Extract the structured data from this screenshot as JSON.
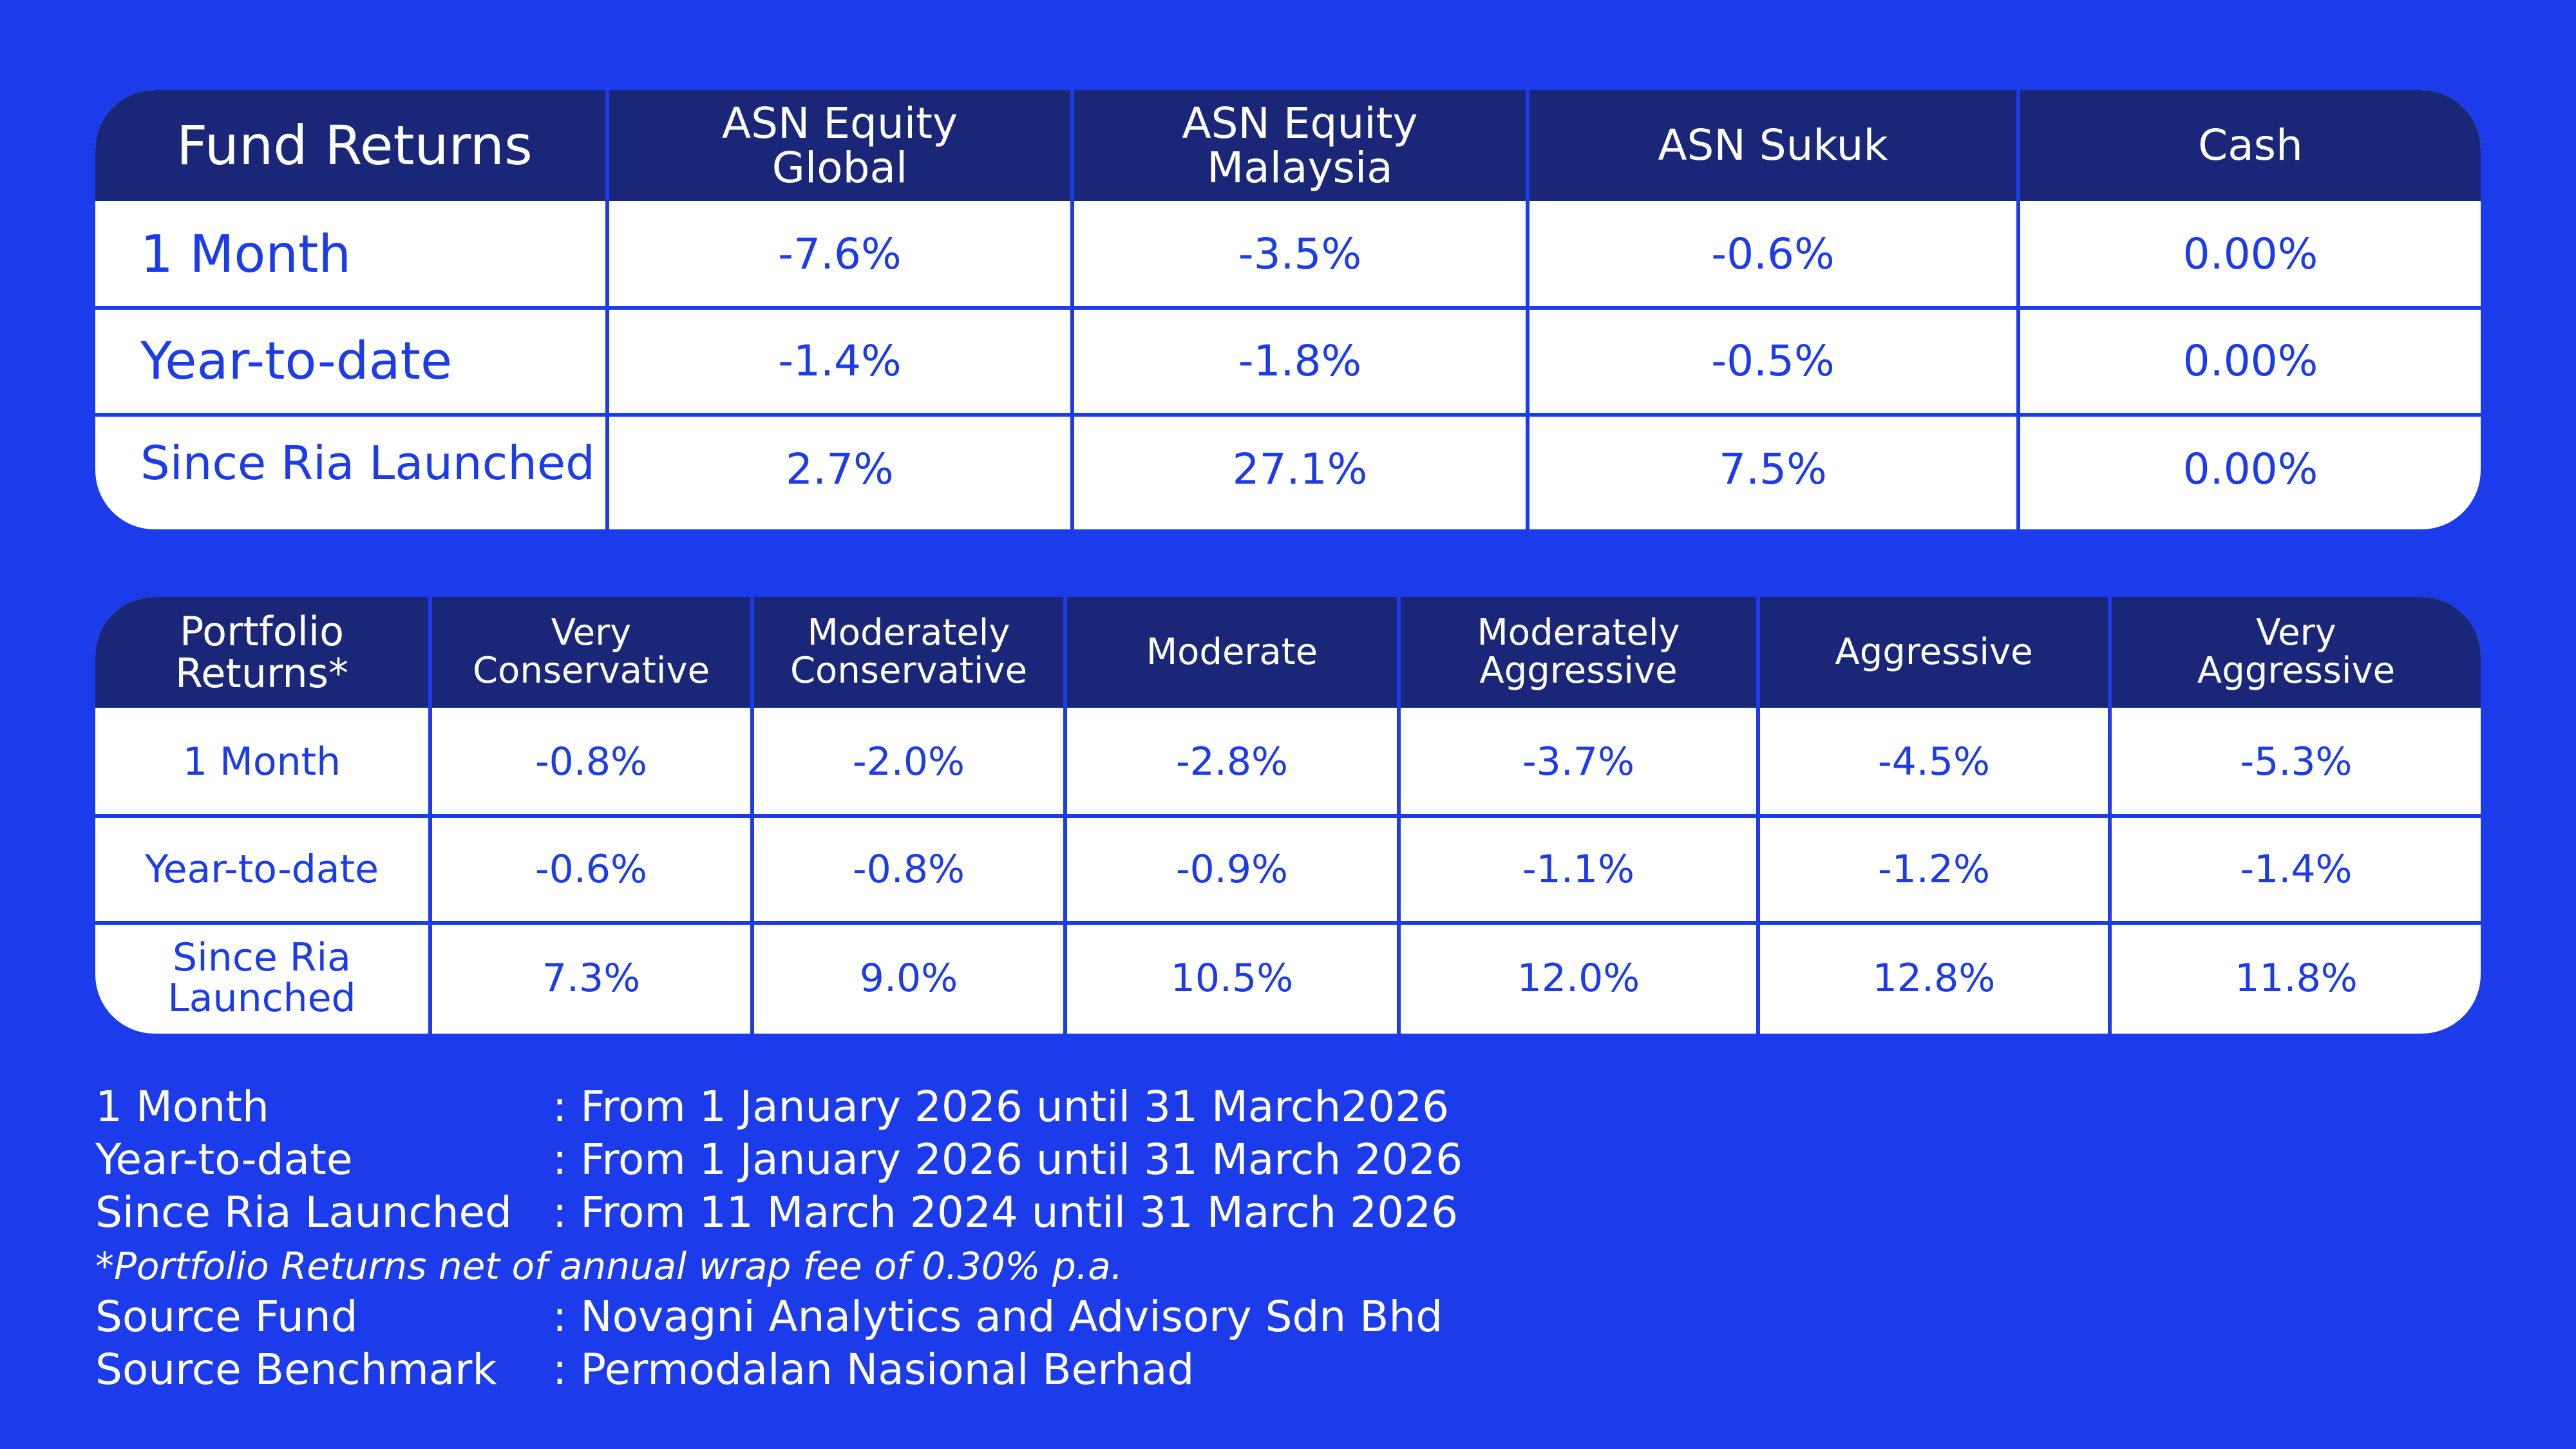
{
  "fund_table": {
    "headers": [
      "Fund Returns",
      "ASN Equity\nGlobal",
      "ASN Equity\nMalaysia",
      "ASN Sukuk",
      "Cash"
    ],
    "rows": [
      {
        "label": "1 Month",
        "values": [
          "-7.6%",
          "-3.5%",
          "-0.6%",
          "0.00%"
        ]
      },
      {
        "label": "Year-to-date",
        "values": [
          "-1.4%",
          "-1.8%",
          "-0.5%",
          "0.00%"
        ]
      },
      {
        "label": "Since Ria Launched",
        "values": [
          "2.7%",
          "27.1%",
          "7.5%",
          "0.00%"
        ]
      }
    ]
  },
  "portfolio_table": {
    "headers": [
      "Portfolio\nReturns*",
      "Very\nConservative",
      "Moderately\nConservative",
      "Moderate",
      "Moderately\nAggressive",
      "Aggressive",
      "Very\nAggressive"
    ],
    "rows": [
      {
        "label": "1 Month",
        "values": [
          "-0.8%",
          "-2.0%",
          "-2.8%",
          "-3.7%",
          "-4.5%",
          "-5.3%"
        ]
      },
      {
        "label": "Year-to-date",
        "values": [
          "-0.6%",
          "-0.8%",
          "-0.9%",
          "-1.1%",
          "-1.2%",
          "-1.4%"
        ]
      },
      {
        "label": "Since Ria\nLaunched",
        "values": [
          "7.3%",
          "9.0%",
          "10.5%",
          "12.0%",
          "12.8%",
          "11.8%"
        ]
      }
    ]
  },
  "notes": {
    "month_label": "1 Month",
    "month_value": ": From 1 January 2026 until 31 March2026",
    "ytd_label": "Year-to-date",
    "ytd_value": ": From 1 January 2026 until 31 March 2026",
    "since_label": "Since Ria Launched",
    "since_value": ": From 11 March 2024 until  31 March 2026",
    "fee_note": "*Portfolio Returns net of annual wrap fee of 0.30% p.a.",
    "source_fund_label": "Source Fund",
    "source_fund_value": ": Novagni Analytics and Advisory Sdn Bhd",
    "source_benchmark_label": "Source Benchmark",
    "source_benchmark_value": ": Permodalan Nasional Berhad"
  },
  "colors": {
    "background": "#1c3bea",
    "header_fill": "#1a2678",
    "table_fill": "#ffffff",
    "text_accent": "#1c3bea"
  }
}
